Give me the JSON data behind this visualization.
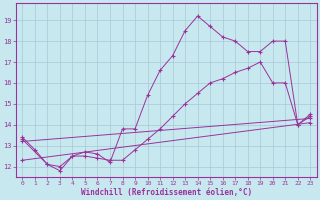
{
  "xlabel": "Windchill (Refroidissement éolien,°C)",
  "background_color": "#c8e8f0",
  "line_color": "#993399",
  "grid_color": "#a8c8d8",
  "xlim": [
    -0.5,
    23.5
  ],
  "ylim": [
    11.5,
    19.8
  ],
  "xticks": [
    0,
    1,
    2,
    3,
    4,
    5,
    6,
    7,
    8,
    9,
    10,
    11,
    12,
    13,
    14,
    15,
    16,
    17,
    18,
    19,
    20,
    21,
    22,
    23
  ],
  "yticks": [
    12,
    13,
    14,
    15,
    16,
    17,
    18,
    19
  ],
  "series": [
    {
      "x": [
        0,
        1,
        2,
        3,
        4,
        5,
        6,
        7,
        8,
        9,
        10,
        11,
        12,
        13,
        14,
        15,
        16,
        17,
        18,
        19,
        20,
        21,
        22,
        23
      ],
      "y": [
        13.4,
        12.8,
        12.1,
        11.8,
        12.5,
        12.7,
        12.6,
        12.2,
        13.8,
        13.8,
        15.4,
        16.6,
        17.3,
        18.5,
        19.2,
        18.7,
        18.2,
        18.0,
        17.5,
        17.5,
        18.0,
        18.0,
        14.0,
        14.4
      ]
    },
    {
      "x": [
        0,
        2,
        3,
        4,
        5,
        6,
        7,
        8,
        9,
        10,
        11,
        12,
        13,
        14,
        15,
        16,
        17,
        18,
        19,
        20,
        21,
        22,
        23
      ],
      "y": [
        13.3,
        12.1,
        12.0,
        12.5,
        12.5,
        12.4,
        12.3,
        12.3,
        12.8,
        13.3,
        13.8,
        14.4,
        15.0,
        15.5,
        16.0,
        16.2,
        16.5,
        16.7,
        17.0,
        16.0,
        16.0,
        14.0,
        14.5
      ]
    },
    {
      "x": [
        0,
        23
      ],
      "y": [
        12.3,
        14.1
      ]
    },
    {
      "x": [
        0,
        23
      ],
      "y": [
        13.2,
        14.3
      ]
    }
  ]
}
